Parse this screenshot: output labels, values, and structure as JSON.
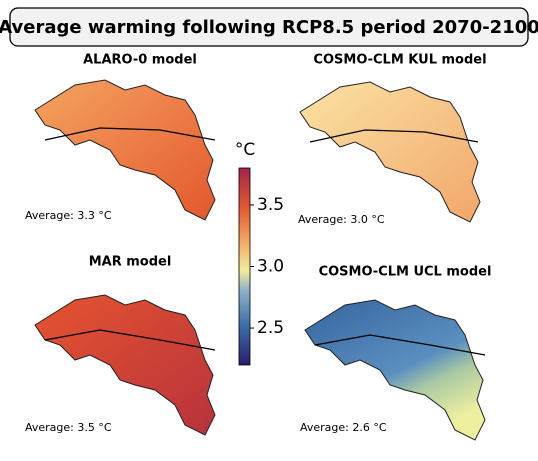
{
  "title": "Average warming following RCP8.5 period 2070-2100",
  "panels": [
    {
      "title": "ALARO-0 model",
      "average": "Average: 3.3 °C"
    },
    {
      "title": "COSMO-CLM KUL model",
      "average": "Average: 3.0 °C"
    },
    {
      "title": "MAR model",
      "average": "Average: 3.5 °C"
    },
    {
      "title": "COSMO-CLM UCL model",
      "average": "Average: 2.6 °C"
    }
  ],
  "colorbar": {
    "label": "°C",
    "lim": [
      2.2,
      3.8
    ],
    "ticks": [
      2.5,
      {
        "value": 3,
        "label": "3.0"
      },
      3.5
    ]
  }
}
